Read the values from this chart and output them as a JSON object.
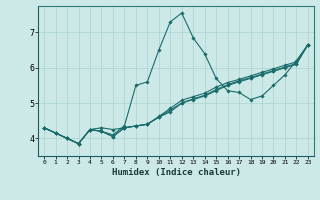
{
  "xlabel": "Humidex (Indice chaleur)",
  "xlim": [
    -0.5,
    23.5
  ],
  "ylim": [
    3.5,
    7.75
  ],
  "yticks": [
    4,
    5,
    6,
    7
  ],
  "xticks": [
    0,
    1,
    2,
    3,
    4,
    5,
    6,
    7,
    8,
    9,
    10,
    11,
    12,
    13,
    14,
    15,
    16,
    17,
    18,
    19,
    20,
    21,
    22,
    23
  ],
  "background_color": "#cce9e8",
  "grid_color": "#aad4d2",
  "line_color": "#1a6b6b",
  "lines": [
    [
      4.3,
      4.15,
      4.0,
      3.85,
      4.25,
      4.3,
      4.25,
      4.3,
      4.35,
      4.4,
      4.6,
      4.75,
      5.0,
      5.1,
      5.2,
      5.35,
      5.5,
      5.6,
      5.7,
      5.8,
      5.9,
      6.0,
      6.1,
      6.65
    ],
    [
      4.3,
      4.15,
      4.0,
      3.85,
      4.25,
      4.2,
      4.1,
      4.35,
      5.5,
      5.6,
      6.5,
      7.3,
      7.55,
      6.85,
      6.4,
      5.7,
      5.35,
      5.3,
      5.1,
      5.2,
      5.5,
      5.8,
      6.2,
      6.65
    ],
    [
      4.3,
      4.15,
      4.0,
      3.85,
      4.25,
      4.2,
      4.05,
      4.3,
      4.35,
      4.4,
      4.6,
      4.8,
      5.0,
      5.12,
      5.22,
      5.38,
      5.52,
      5.63,
      5.72,
      5.82,
      5.92,
      6.02,
      6.12,
      6.65
    ],
    [
      4.3,
      4.15,
      4.0,
      3.85,
      4.25,
      4.2,
      4.05,
      4.3,
      4.35,
      4.4,
      4.62,
      4.85,
      5.08,
      5.18,
      5.28,
      5.45,
      5.58,
      5.67,
      5.77,
      5.87,
      5.97,
      6.07,
      6.17,
      6.65
    ]
  ]
}
